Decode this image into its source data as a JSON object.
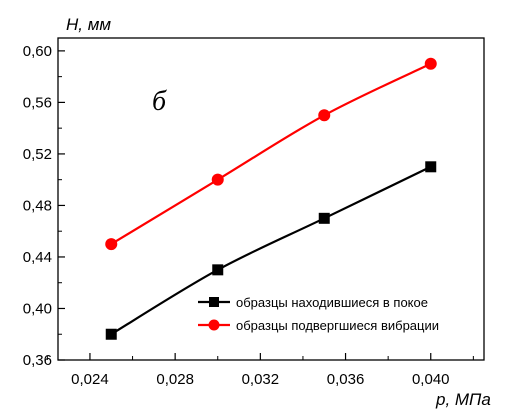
{
  "chart_data": {
    "type": "line",
    "xlabel": "p, МПа",
    "ylabel": "H, мм",
    "annotation": "б",
    "xlim": [
      0.0225,
      0.0425
    ],
    "ylim": [
      0.36,
      0.61
    ],
    "xticks": [
      {
        "value": 0.024,
        "label": "0,024"
      },
      {
        "value": 0.028,
        "label": "0,028"
      },
      {
        "value": 0.032,
        "label": "0,032"
      },
      {
        "value": 0.036,
        "label": "0,036"
      },
      {
        "value": 0.04,
        "label": "0,040"
      }
    ],
    "yticks": [
      {
        "value": 0.36,
        "label": "0,36"
      },
      {
        "value": 0.4,
        "label": "0,40"
      },
      {
        "value": 0.44,
        "label": "0,44"
      },
      {
        "value": 0.48,
        "label": "0,48"
      },
      {
        "value": 0.52,
        "label": "0,52"
      },
      {
        "value": 0.56,
        "label": "0,56"
      },
      {
        "value": 0.6,
        "label": "0,60"
      }
    ],
    "grid": false,
    "legend_position": "bottom-right",
    "series": [
      {
        "name": "образцы находившиеся в покое",
        "color": "#000000",
        "marker": "square",
        "x": [
          0.025,
          0.03,
          0.035,
          0.04
        ],
        "y": [
          0.38,
          0.43,
          0.47,
          0.51
        ]
      },
      {
        "name": "образцы подвергшиеся вибрации",
        "color": "#ff0000",
        "marker": "circle",
        "x": [
          0.025,
          0.03,
          0.035,
          0.04
        ],
        "y": [
          0.45,
          0.5,
          0.55,
          0.59
        ]
      }
    ]
  }
}
